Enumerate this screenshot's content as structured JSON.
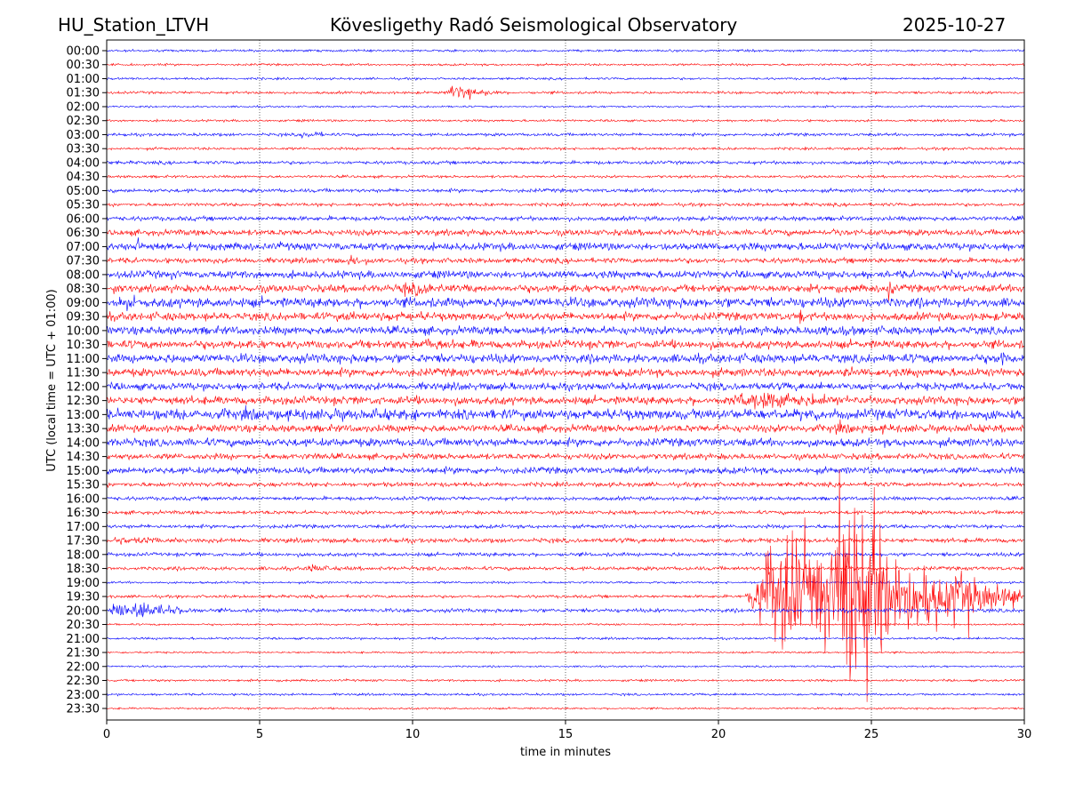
{
  "chart_data": {
    "type": "line",
    "title_left": "HU_Station_LTVH",
    "title": "Kövesligethy Radó Seismological Observatory",
    "title_right": "2025-10-27",
    "xlabel": "time in minutes",
    "ylabel": "UTC (local time = UTC + 01:00)",
    "xlim": [
      0,
      30
    ],
    "xticks": [
      0,
      5,
      10,
      15,
      20,
      25,
      30
    ],
    "grid": "vertical dotted",
    "row_labels": [
      "00:00",
      "00:30",
      "01:00",
      "01:30",
      "02:00",
      "02:30",
      "03:00",
      "03:30",
      "04:00",
      "04:30",
      "05:00",
      "05:30",
      "06:00",
      "06:30",
      "07:00",
      "07:30",
      "08:00",
      "08:30",
      "09:00",
      "09:30",
      "10:00",
      "10:30",
      "11:00",
      "11:30",
      "12:00",
      "12:30",
      "13:00",
      "13:30",
      "14:00",
      "14:30",
      "15:00",
      "15:30",
      "16:00",
      "16:30",
      "17:00",
      "17:30",
      "18:00",
      "18:30",
      "19:00",
      "19:30",
      "20:00",
      "20:30",
      "21:00",
      "21:30",
      "22:00",
      "22:30",
      "23:00",
      "23:30"
    ],
    "colors": [
      "#0000ff",
      "#ff0000"
    ],
    "noise_level": [
      0.6,
      0.6,
      0.6,
      0.7,
      0.5,
      0.6,
      0.8,
      0.7,
      0.9,
      0.7,
      1.0,
      0.9,
      1.2,
      1.6,
      2.0,
      1.4,
      2.0,
      2.0,
      2.6,
      2.2,
      2.2,
      2.2,
      2.4,
      2.2,
      2.0,
      2.2,
      2.8,
      2.0,
      2.2,
      1.6,
      1.8,
      1.2,
      1.0,
      1.0,
      1.0,
      1.2,
      1.0,
      1.0,
      0.6,
      0.8,
      1.0,
      0.5,
      0.6,
      0.5,
      0.5,
      0.6,
      0.6,
      0.5
    ],
    "events": [
      {
        "row": 3,
        "t0": 11,
        "t1": 13,
        "amp": 5
      },
      {
        "row": 6,
        "t0": 6.2,
        "t1": 7.6,
        "amp": 3
      },
      {
        "row": 13,
        "t0": 23.5,
        "t1": 24.6,
        "amp": 4
      },
      {
        "row": 14,
        "t0": 0.9,
        "t1": 1.3,
        "amp": 10
      },
      {
        "row": 14,
        "t0": 2,
        "t1": 3.5,
        "amp": 4
      },
      {
        "row": 15,
        "t0": 7.8,
        "t1": 9.3,
        "amp": 5
      },
      {
        "row": 16,
        "t0": 2,
        "t1": 3,
        "amp": 4
      },
      {
        "row": 16,
        "t0": 27.5,
        "t1": 28.6,
        "amp": 5
      },
      {
        "row": 17,
        "t0": 0.2,
        "t1": 0.5,
        "amp": 8
      },
      {
        "row": 17,
        "t0": 9.5,
        "t1": 12,
        "amp": 6
      },
      {
        "row": 17,
        "t0": 25.5,
        "t1": 25.8,
        "amp": 12
      },
      {
        "row": 18,
        "t0": 0.3,
        "t1": 1.3,
        "amp": 7
      },
      {
        "row": 19,
        "t0": 7,
        "t1": 14,
        "amp": 4
      },
      {
        "row": 19,
        "t0": 22.6,
        "t1": 22.9,
        "amp": 10
      },
      {
        "row": 20,
        "t0": 23,
        "t1": 25,
        "amp": 6
      },
      {
        "row": 21,
        "t0": 10,
        "t1": 12,
        "amp": 6
      },
      {
        "row": 22,
        "t0": 29,
        "t1": 30,
        "amp": 6
      },
      {
        "row": 23,
        "t0": 24,
        "t1": 24.6,
        "amp": 5
      },
      {
        "row": 25,
        "t0": 20,
        "t1": 26,
        "amp": 7
      },
      {
        "row": 26,
        "t0": 0,
        "t1": 30,
        "amp": 4
      },
      {
        "row": 27,
        "t0": 23,
        "t1": 29,
        "amp": 4
      },
      {
        "row": 29,
        "t0": 6.9,
        "t1": 7.1,
        "amp": 7
      },
      {
        "row": 35,
        "t0": 0,
        "t1": 3,
        "amp": 4
      },
      {
        "row": 37,
        "t0": 6.5,
        "t1": 7.6,
        "amp": 4
      },
      {
        "row": 39,
        "t0": 20.8,
        "t1": 30,
        "amp": 45
      },
      {
        "row": 39,
        "t0": 23.8,
        "t1": 25.8,
        "amp": 120
      },
      {
        "row": 40,
        "t0": 0,
        "t1": 3,
        "amp": 7
      }
    ]
  }
}
